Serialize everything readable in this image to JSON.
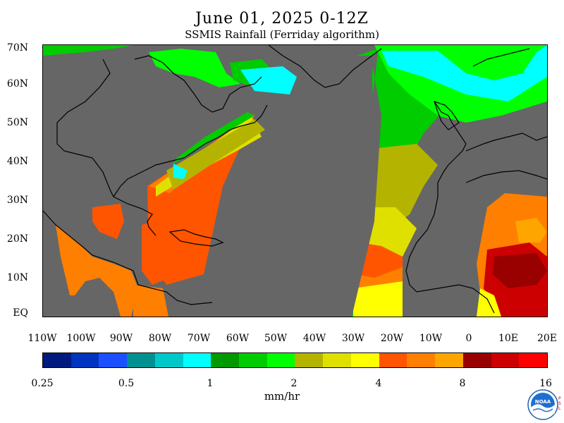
{
  "title": "June 01, 2025 0-12Z",
  "subtitle": "SSMIS Rainfall (Ferriday algorithm)",
  "lat_labels": [
    "70N",
    "60N",
    "50N",
    "40N",
    "30N",
    "20N",
    "10N",
    "EQ"
  ],
  "lon_labels": [
    "110W",
    "100W",
    "90W",
    "80W",
    "70W",
    "60W",
    "50W",
    "40W",
    "30W",
    "20W",
    "10W",
    "0",
    "10E",
    "20E"
  ],
  "colorbar": {
    "colors": [
      "#001a80",
      "#0033c0",
      "#1a50ff",
      "#009090",
      "#00c8c8",
      "#00ffff",
      "#009900",
      "#00cc00",
      "#00ff00",
      "#b4b400",
      "#e0e000",
      "#ffff00",
      "#ff5500",
      "#ff7f00",
      "#ffa500",
      "#990000",
      "#cc0000",
      "#ff0000"
    ],
    "tick_labels": [
      "0.25",
      "0.5",
      "1",
      "2",
      "4",
      "8",
      "16"
    ]
  },
  "units": "mm/hr",
  "logo": {
    "name": "noaa-logo",
    "text": "NOAA",
    "side_text": "PSL"
  }
}
